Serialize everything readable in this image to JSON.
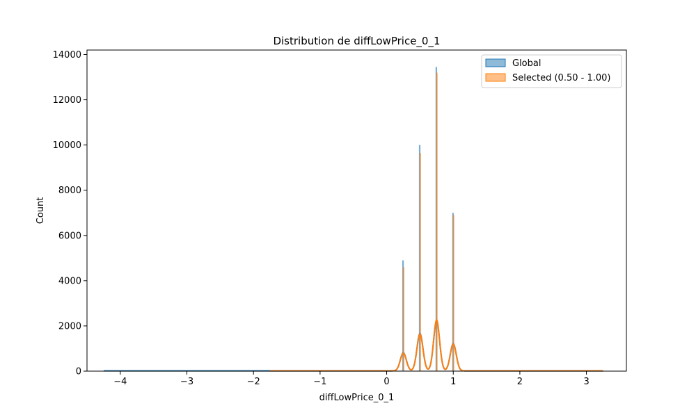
{
  "chart_data": {
    "type": "histogram",
    "title": "Distribution de diffLowPrice_0_1",
    "xlabel": "diffLowPrice_0_1",
    "ylabel": "Count",
    "xlim": [
      -4.5,
      3.6
    ],
    "ylim": [
      0,
      14200
    ],
    "x_ticks": [
      -4,
      -3,
      -2,
      -1,
      0,
      1,
      2,
      3
    ],
    "x_tick_labels": [
      "−4",
      "−3",
      "−2",
      "−1",
      "0",
      "1",
      "2",
      "3"
    ],
    "y_ticks": [
      0,
      2000,
      4000,
      6000,
      8000,
      10000,
      12000,
      14000
    ],
    "y_tick_labels": [
      "0",
      "2000",
      "4000",
      "6000",
      "8000",
      "10000",
      "12000",
      "14000"
    ],
    "legend_position": "top-right",
    "series": [
      {
        "name": "Global",
        "color": "#1f77b4",
        "range": [
          -4.25,
          3.25
        ],
        "spikes": [
          {
            "x": 0.25,
            "count": 4900
          },
          {
            "x": 0.5,
            "count": 10000
          },
          {
            "x": 0.75,
            "count": 13450
          },
          {
            "x": 1.0,
            "count": 7000
          }
        ],
        "kde": [
          {
            "x": 0.25,
            "count": 800
          },
          {
            "x": 0.5,
            "count": 1650
          },
          {
            "x": 0.75,
            "count": 2200
          },
          {
            "x": 1.0,
            "count": 1200
          }
        ]
      },
      {
        "name": "Selected (0.50 - 1.00)",
        "color": "#ff7f0e",
        "range": [
          -1.75,
          3.25
        ],
        "spikes": [
          {
            "x": 0.25,
            "count": 4600
          },
          {
            "x": 0.5,
            "count": 9650
          },
          {
            "x": 0.75,
            "count": 13200
          },
          {
            "x": 1.0,
            "count": 6900
          }
        ],
        "kde": [
          {
            "x": 0.25,
            "count": 780
          },
          {
            "x": 0.5,
            "count": 1620
          },
          {
            "x": 0.75,
            "count": 2250
          },
          {
            "x": 1.0,
            "count": 1180
          }
        ]
      }
    ]
  }
}
